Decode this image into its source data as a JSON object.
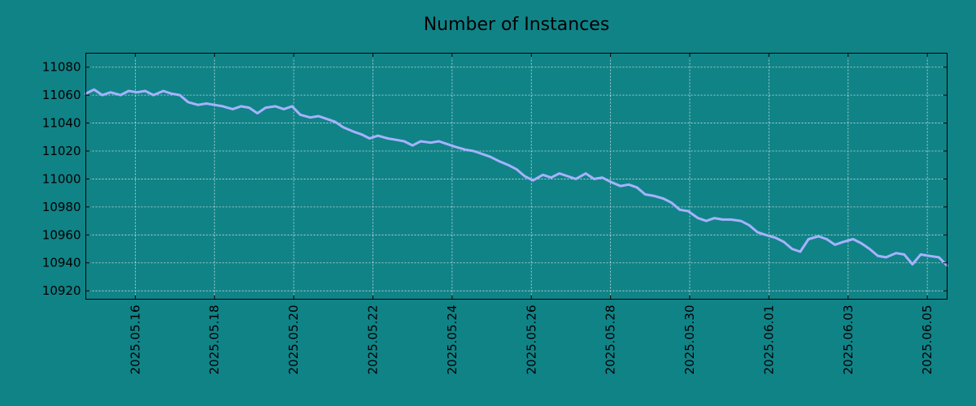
{
  "chart_data": {
    "type": "line",
    "title": "Number of Instances",
    "xlabel": "",
    "ylabel": "",
    "x_type": "date",
    "xlim": [
      "2025-05-14T18:00",
      "2025-06-05T12:00"
    ],
    "ylim": [
      10914,
      11090
    ],
    "y_ticks": [
      10920,
      10940,
      10960,
      10980,
      11000,
      11020,
      11040,
      11060,
      11080
    ],
    "x_ticks": [
      "2025.05.16",
      "2025.05.18",
      "2025.05.20",
      "2025.05.22",
      "2025.05.24",
      "2025.05.26",
      "2025.05.28",
      "2025.05.30",
      "2025.06.01",
      "2025.06.03",
      "2025.06.05"
    ],
    "x_tick_dates": [
      "2025-05-16",
      "2025-05-18",
      "2025-05-20",
      "2025-05-22",
      "2025-05-24",
      "2025-05-26",
      "2025-05-28",
      "2025-05-30",
      "2025-06-01",
      "2025-06-03",
      "2025-06-05"
    ],
    "grid": true,
    "colors": {
      "background": "#108387",
      "line": "#a6b2ff"
    },
    "series": [
      {
        "x": [
          "2025-05-14T18:00",
          "2025-05-14T23:00",
          "2025-05-15T04:00",
          "2025-05-15T09:00",
          "2025-05-15T15:00",
          "2025-05-15T20:00",
          "2025-05-16T01:00",
          "2025-05-16T06:00",
          "2025-05-16T11:00",
          "2025-05-16T17:00",
          "2025-05-16T22:00",
          "2025-05-17T03:00",
          "2025-05-17T08:00",
          "2025-05-17T14:00",
          "2025-05-17T19:00",
          "2025-05-18T00:00",
          "2025-05-18T05:00",
          "2025-05-18T11:00",
          "2025-05-18T16:00",
          "2025-05-18T21:00",
          "2025-05-19T02:00",
          "2025-05-19T07:00",
          "2025-05-19T13:00",
          "2025-05-19T18:00",
          "2025-05-19T23:00",
          "2025-05-20T04:00",
          "2025-05-20T10:00",
          "2025-05-20T15:00",
          "2025-05-20T20:00",
          "2025-05-21T01:00",
          "2025-05-21T06:00",
          "2025-05-21T12:00",
          "2025-05-21T17:00",
          "2025-05-21T22:00",
          "2025-05-22T03:00",
          "2025-05-22T09:00",
          "2025-05-22T14:00",
          "2025-05-22T19:00",
          "2025-05-23T00:00",
          "2025-05-23T05:00",
          "2025-05-23T11:00",
          "2025-05-23T16:00",
          "2025-05-23T21:00",
          "2025-05-24T02:00",
          "2025-05-24T08:00",
          "2025-05-24T13:00",
          "2025-05-24T18:00",
          "2025-05-24T23:00",
          "2025-05-25T04:00",
          "2025-05-25T10:00",
          "2025-05-25T15:00",
          "2025-05-25T20:00",
          "2025-05-26T01:00",
          "2025-05-26T07:00",
          "2025-05-26T12:00",
          "2025-05-26T17:00",
          "2025-05-26T22:00",
          "2025-05-27T03:00",
          "2025-05-27T09:00",
          "2025-05-27T14:00",
          "2025-05-27T19:00",
          "2025-05-28T00:00",
          "2025-05-28T06:00",
          "2025-05-28T11:00",
          "2025-05-28T16:00",
          "2025-05-28T21:00",
          "2025-05-29T02:00",
          "2025-05-29T08:00",
          "2025-05-29T13:00",
          "2025-05-29T18:00",
          "2025-05-29T23:00",
          "2025-05-30T05:00",
          "2025-05-30T10:00",
          "2025-05-30T15:00",
          "2025-05-30T20:00",
          "2025-05-31T01:00",
          "2025-05-31T07:00",
          "2025-05-31T12:00",
          "2025-05-31T17:00",
          "2025-05-31T22:00",
          "2025-06-01T04:00",
          "2025-06-01T09:00",
          "2025-06-01T14:00",
          "2025-06-01T19:00",
          "2025-06-02T00:00",
          "2025-06-02T06:00",
          "2025-06-02T11:00",
          "2025-06-02T16:00",
          "2025-06-02T21:00",
          "2025-06-03T03:00",
          "2025-06-03T08:00",
          "2025-06-03T13:00",
          "2025-06-03T18:00",
          "2025-06-03T23:00",
          "2025-06-04T05:00",
          "2025-06-04T10:00",
          "2025-06-04T15:00",
          "2025-06-04T20:00",
          "2025-06-05T01:00",
          "2025-06-05T07:00",
          "2025-06-05T12:00"
        ],
        "values": [
          11061,
          11064,
          11060,
          11062,
          11060,
          11063,
          11062,
          11063,
          11060,
          11063,
          11061,
          11060,
          11055,
          11053,
          11054,
          11053,
          11052,
          11050,
          11052,
          11051,
          11047,
          11051,
          11052,
          11050,
          11052,
          11046,
          11044,
          11045,
          11043,
          11041,
          11037,
          11034,
          11032,
          11029,
          11031,
          11029,
          11028,
          11027,
          11024,
          11027,
          11026,
          11027,
          11025,
          11023,
          11021,
          11020,
          11018,
          11016,
          11013,
          11010,
          11007,
          11002,
          10999,
          11003,
          11001,
          11004,
          11002,
          11000,
          11004,
          11000,
          11001,
          10998,
          10995,
          10996,
          10994,
          10989,
          10988,
          10986,
          10983,
          10978,
          10977,
          10972,
          10970,
          10972,
          10971,
          10971,
          10970,
          10967,
          10962,
          10960,
          10958,
          10955,
          10950,
          10948,
          10957,
          10959,
          10957,
          10953,
          10955,
          10957,
          10954,
          10950,
          10945,
          10944,
          10947,
          10946,
          10939,
          10946,
          10945,
          10944,
          10938
        ]
      }
    ]
  }
}
